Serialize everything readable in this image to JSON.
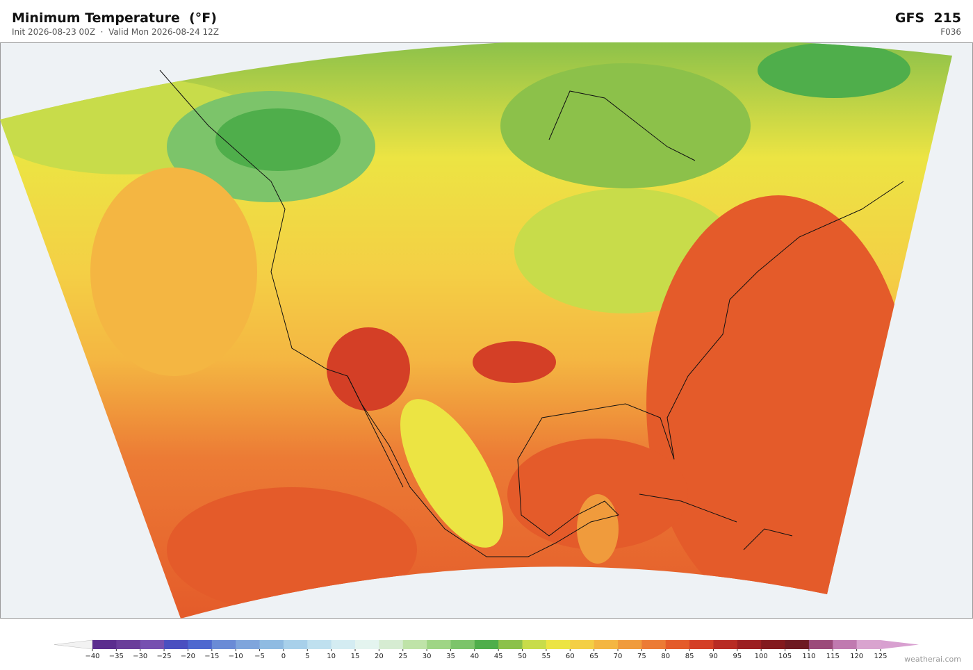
{
  "header": {
    "title": "Minimum Temperature  (°F)",
    "subtitle": "Init 2026-08-23 00Z  ·  Valid Mon 2026-08-24 12Z",
    "model": "GFS  215",
    "forecast_hour": "F036"
  },
  "colorbar": {
    "ticks": [
      {
        "value": -40,
        "label": "−40"
      },
      {
        "value": -35,
        "label": "−35"
      },
      {
        "value": -30,
        "label": "−30"
      },
      {
        "value": -25,
        "label": "−25"
      },
      {
        "value": -20,
        "label": "−20"
      },
      {
        "value": -15,
        "label": "−15"
      },
      {
        "value": -10,
        "label": "−10"
      },
      {
        "value": -5,
        "label": "−5"
      },
      0,
      5,
      10,
      15,
      20,
      25,
      30,
      35,
      40,
      45,
      50,
      55,
      60,
      65,
      70,
      75,
      80,
      85,
      90,
      95,
      100,
      105,
      110,
      115,
      120,
      125
    ],
    "colors": [
      "#5b2d8e",
      "#6a3d9a",
      "#7650b0",
      "#4a4fc0",
      "#4e68cf",
      "#6a8bd6",
      "#7fa5dc",
      "#8fbbe2",
      "#a8d0ea",
      "#bfe0ef",
      "#d4ecf2",
      "#e4f4ef",
      "#d6ecd2",
      "#bfe3a8",
      "#9fd585",
      "#7cc46a",
      "#4fae4b",
      "#8cc14a",
      "#c8dc4a",
      "#ece443",
      "#f4cf45",
      "#f4b642",
      "#f09b3c",
      "#ec7b35",
      "#e45b2a",
      "#d43f26",
      "#b82b24",
      "#9c1f22",
      "#831a1e",
      "#6e1a22",
      "#9b4a7a",
      "#c07ab0",
      "#d9a4cf"
    ],
    "under_color": "#f2f2f2",
    "over_color": "#d8a0d0"
  },
  "watermark": "weatherai.com"
}
